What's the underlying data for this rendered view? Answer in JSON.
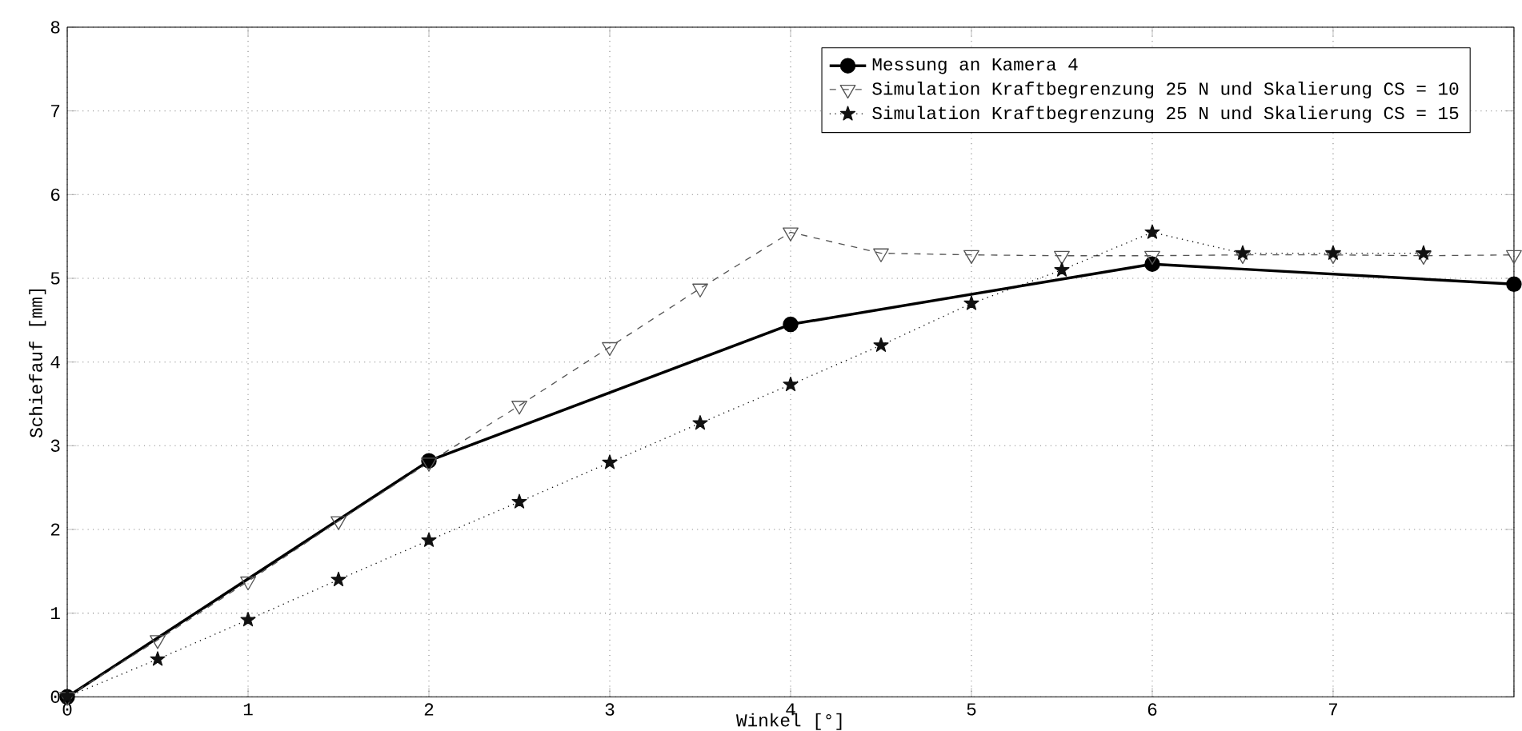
{
  "chart_data": {
    "type": "line",
    "xlabel": "Winkel [°]",
    "ylabel": "Schiefauf [mm]",
    "xlim": [
      0,
      8
    ],
    "ylim": [
      0,
      8
    ],
    "xticks": [
      0,
      1,
      2,
      3,
      4,
      5,
      6,
      7,
      {
        "value": 8,
        "label": null
      }
    ],
    "yticks": [
      0,
      1,
      2,
      3,
      4,
      5,
      6,
      7,
      8
    ],
    "grid": true,
    "legend": "top right",
    "series": [
      {
        "name": "Messung an Kamera 4",
        "color": "#000000",
        "marker": "circle",
        "line_style": "solid",
        "x": [
          0,
          2,
          4,
          6,
          8
        ],
        "values": [
          0,
          2.82,
          4.45,
          5.17,
          4.93
        ]
      },
      {
        "name": "Simulation Kraftbegrenzung 25 N und Skalierung CS = 10",
        "color": "#555555",
        "marker": "triangle",
        "line_style": "dashed",
        "x": [
          0,
          0.5,
          1,
          1.5,
          2,
          2.5,
          3,
          3.5,
          4,
          4.5,
          5,
          5.5,
          6,
          6.5,
          7,
          7.5,
          8
        ],
        "values": [
          0,
          0.68,
          1.38,
          2.1,
          2.8,
          3.48,
          4.18,
          4.88,
          5.55,
          5.3,
          5.28,
          5.27,
          5.27,
          5.28,
          5.28,
          5.27,
          5.28
        ]
      },
      {
        "name": "Simulation Kraftbegrenzung 25 N und Skalierung CS = 15",
        "color": "#111111",
        "marker": "star",
        "line_style": "dotted",
        "x": [
          0,
          0.5,
          1,
          1.5,
          2,
          2.5,
          3,
          3.5,
          4,
          4.5,
          5,
          5.5,
          6,
          6.5,
          7,
          7.5
        ],
        "values": [
          0,
          0.45,
          0.92,
          1.4,
          1.87,
          2.33,
          2.8,
          3.27,
          3.73,
          4.2,
          4.7,
          5.1,
          5.55,
          5.3,
          5.3,
          5.3
        ]
      }
    ]
  }
}
